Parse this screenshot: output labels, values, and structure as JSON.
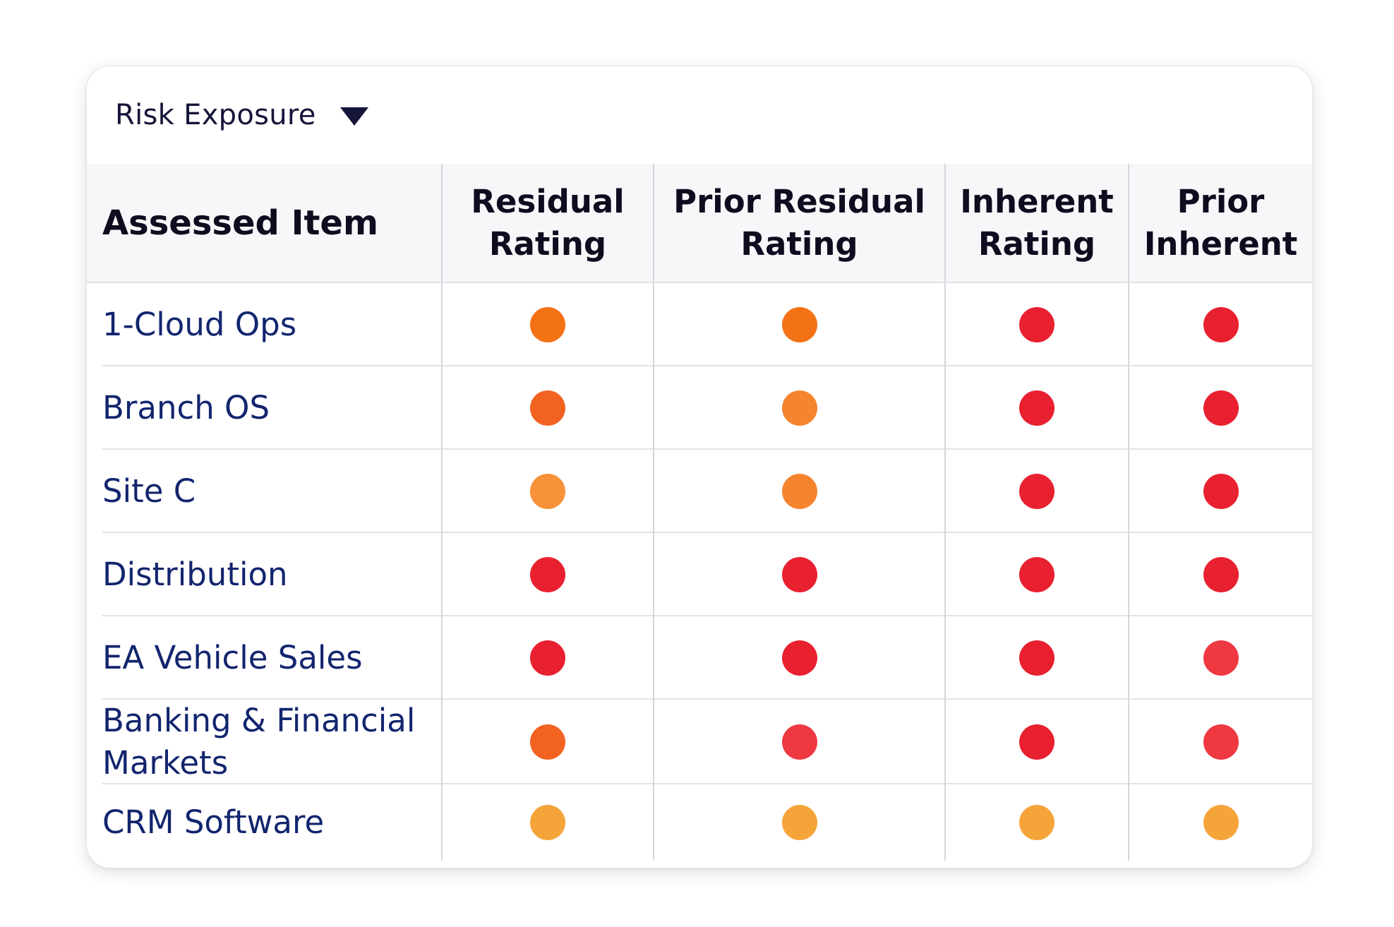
{
  "header": {
    "dropdown_label": "Risk Exposure",
    "dropdown_icon": "triangle-down-icon"
  },
  "colors": {
    "text_primary": "#15153a",
    "item_link": "#12256e",
    "high": "#e8202f",
    "high_light": "#ee3842",
    "medium_high": "#f37216",
    "medium_high_alt": "#f26322",
    "medium": "#f5842f",
    "medium_light": "#f7923a",
    "low": "#f5a43a"
  },
  "table": {
    "columns": [
      {
        "label": "Assessed Item"
      },
      {
        "label_line1": "Residual",
        "label_line2": "Rating"
      },
      {
        "label_line1": "Prior Residual",
        "label_line2": "Rating"
      },
      {
        "label_line1": "Inherent",
        "label_line2": "Rating"
      },
      {
        "label_line1": "Prior",
        "label_line2": "Inherent"
      }
    ],
    "rows": [
      {
        "item": "1-Cloud Ops",
        "ratings": [
          "#f37216",
          "#f37216",
          "#e8202f",
          "#e8202f"
        ]
      },
      {
        "item": "Branch OS",
        "ratings": [
          "#f26322",
          "#f5842f",
          "#e8202f",
          "#e8202f"
        ]
      },
      {
        "item": "Site C",
        "ratings": [
          "#f7923a",
          "#f5842f",
          "#e8202f",
          "#e8202f"
        ]
      },
      {
        "item": "Distribution",
        "ratings": [
          "#e8202f",
          "#e8202f",
          "#e8202f",
          "#e8202f"
        ]
      },
      {
        "item": "EA Vehicle Sales",
        "ratings": [
          "#e8202f",
          "#e8202f",
          "#e8202f",
          "#ee3842"
        ]
      },
      {
        "item": "Banking & Financial Markets",
        "ratings": [
          "#f26322",
          "#ee3842",
          "#e8202f",
          "#ee3842"
        ]
      },
      {
        "item": "CRM Software",
        "ratings": [
          "#f5a43a",
          "#f5a43a",
          "#f5a43a",
          "#f5a43a"
        ]
      }
    ]
  }
}
